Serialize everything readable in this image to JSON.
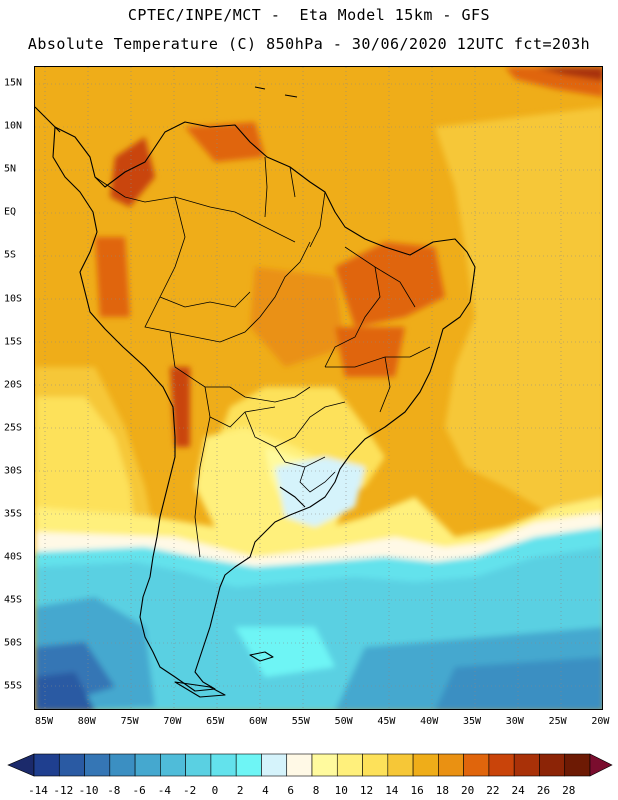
{
  "header": {
    "line1": "CPTEC/INPE/MCT -  Eta Model 15km - GFS",
    "line2": "Absolute Temperature (C) 850hPa - 30/06/2020 12UTC fct=203h"
  },
  "axes": {
    "lat_labels": [
      "15N",
      "10N",
      "5N",
      "EQ",
      "5S",
      "10S",
      "15S",
      "20S",
      "25S",
      "30S",
      "35S",
      "40S",
      "45S",
      "50S",
      "55S"
    ],
    "lon_labels": [
      "85W",
      "80W",
      "75W",
      "70W",
      "65W",
      "60W",
      "55W",
      "50W",
      "45W",
      "40W",
      "35W",
      "30W",
      "25W",
      "20W"
    ]
  },
  "colorbar": {
    "labels": [
      "-14",
      "-12",
      "-10",
      "-8",
      "-6",
      "-4",
      "-2",
      "0",
      "2",
      "4",
      "6",
      "8",
      "10",
      "12",
      "14",
      "16",
      "18",
      "20",
      "22",
      "24",
      "26",
      "28"
    ],
    "colors": [
      "#1f3f8f",
      "#2a5aa3",
      "#3576b5",
      "#3b8fc2",
      "#45a8cf",
      "#4fbcd9",
      "#5ad0e2",
      "#63e2ec",
      "#6ef5f5",
      "#d5f3fb",
      "#fff9e6",
      "#fffa9e",
      "#fff07c",
      "#fde15a",
      "#f6c737",
      "#efad19",
      "#ea9112",
      "#e0650c",
      "#c9440a",
      "#a93108",
      "#8c2406",
      "#6d1a04"
    ],
    "low_arrow_color": "#1b2a6b",
    "high_arrow_color": "#7a0d2e"
  }
}
